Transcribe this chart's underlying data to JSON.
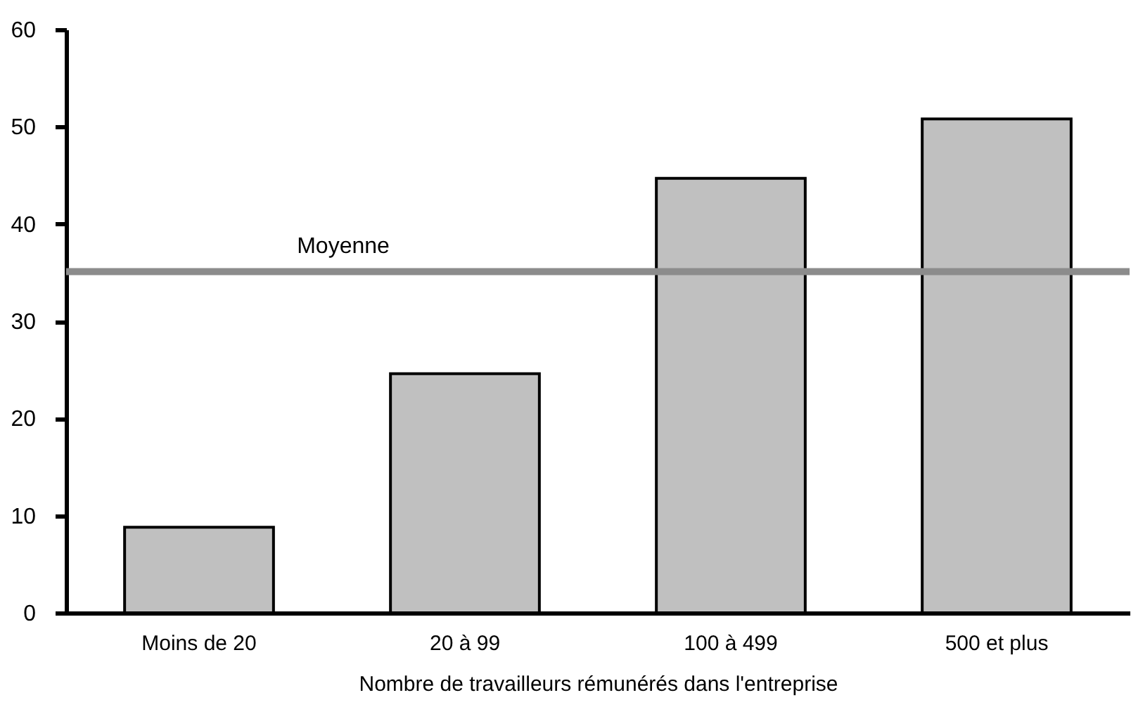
{
  "chart_data": {
    "type": "bar",
    "xlabel": "Nombre de travailleurs rémunérés dans l'entreprise",
    "categories": [
      "Moins de 20",
      "20 à 99",
      "100 à 499",
      "500 et plus"
    ],
    "values": [
      8.8,
      24.6,
      44.7,
      50.8
    ],
    "color": "#c0c0c0",
    "ylim": [
      0,
      60
    ],
    "yticks": [
      0,
      10,
      20,
      30,
      40,
      50,
      60
    ],
    "grid": false,
    "ref_lines": [
      {
        "axis": "y",
        "value": 35.1,
        "label": "Moyenne",
        "color": "#8c8c8c"
      }
    ]
  }
}
